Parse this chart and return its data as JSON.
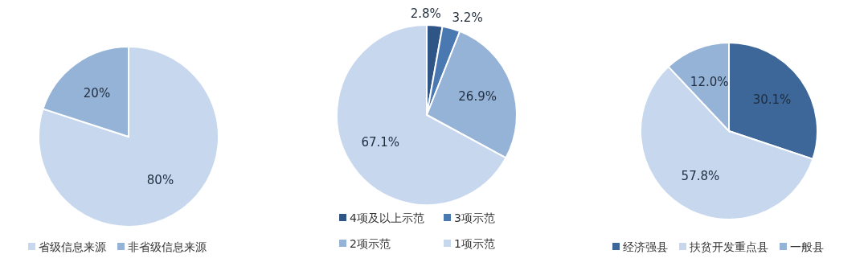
{
  "chart_data": [
    {
      "type": "pie",
      "categories": [
        "省级信息来源",
        "非省级信息来源"
      ],
      "values": [
        80,
        20
      ],
      "colors": [
        "#c6d7ee",
        "#95b3d7"
      ],
      "value_labels": [
        "80%",
        "20%"
      ],
      "legend": "bottom"
    },
    {
      "type": "pie",
      "categories": [
        "4项及以上示范",
        "3项示范",
        "2项示范",
        "1项示范"
      ],
      "values": [
        2.8,
        3.2,
        26.9,
        67.1
      ],
      "colors": [
        "#2f5486",
        "#4a78b0",
        "#95b3d7",
        "#c6d7ee"
      ],
      "value_labels": [
        "2.8%",
        "3.2%",
        "26.9%",
        "67.1%"
      ],
      "legend": "bottom"
    },
    {
      "type": "pie",
      "categories": [
        "经济强县",
        "扶贫开发重点县",
        "一般县"
      ],
      "values": [
        30.1,
        57.8,
        12.0
      ],
      "colors": [
        "#3d6699",
        "#c6d7ee",
        "#95b3d7"
      ],
      "value_labels": [
        "30.1%",
        "57.8%",
        "12.0%"
      ],
      "legend": "bottom"
    }
  ]
}
